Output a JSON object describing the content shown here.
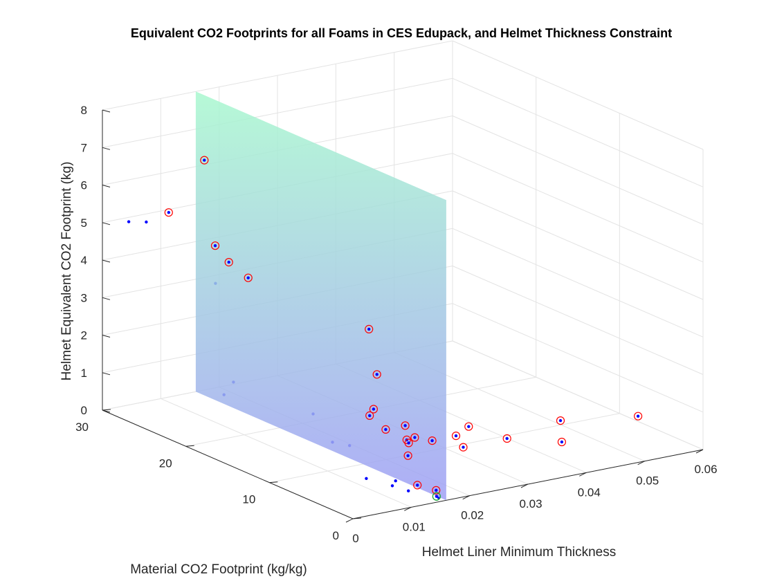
{
  "chart_data": {
    "type": "scatter",
    "title": "Equivalent CO2 Footprints for all Foams in CES Edupack, and Helmet Thickness Constraint",
    "xlabel": "Helmet Liner Minimum Thickness",
    "ylabel": "Material CO2 Footprint (kg/kg)",
    "zlabel": "Helmet Equivalent CO2 Footprint (kg)",
    "xlim": [
      0,
      0.06
    ],
    "ylim": [
      0,
      30
    ],
    "zlim": [
      0,
      8
    ],
    "x_ticks": [
      "0",
      "0.01",
      "0.02",
      "0.03",
      "0.04",
      "0.05",
      "0.06"
    ],
    "y_ticks": [
      "0",
      "10",
      "20",
      "30"
    ],
    "z_ticks": [
      "0",
      "1",
      "2",
      "3",
      "4",
      "5",
      "6",
      "7",
      "8"
    ],
    "grid": true,
    "constraint_plane": {
      "x": 0.016,
      "y": [
        0,
        30
      ],
      "z": [
        0,
        8
      ],
      "color_bottom": "#9f9ff5",
      "color_top": "#a9f8cf"
    },
    "series": [
      {
        "points": [
          {
            "x": 0.0018,
            "y": 28.1,
            "z": 5.15
          },
          {
            "x": 0.0048,
            "y": 28.1,
            "z": 5.05
          },
          {
            "x": 0.0085,
            "y": 22.4,
            "z": 3.85
          },
          {
            "x": 0.0093,
            "y": 20.8,
            "z": 1.35
          },
          {
            "x": 0.0081,
            "y": 21.1,
            "z": 1.02
          },
          {
            "x": 0.0135,
            "y": 14.2,
            "z": 1.01
          },
          {
            "x": 0.0141,
            "y": 12.3,
            "z": 0.42
          },
          {
            "x": 0.0156,
            "y": 11.3,
            "z": 0.38
          },
          {
            "x": 0.0116,
            "y": 6.5,
            "z": 0.09
          },
          {
            "x": 0.0139,
            "y": 4.6,
            "z": 0.14
          },
          {
            "x": 0.0132,
            "y": 4.5,
            "z": 0.04
          },
          {
            "x": 0.0138,
            "y": 3.0,
            "z": 0.03
          },
          {
            "x": 0.015,
            "y": 0.2,
            "z": 0.08
          }
        ]
      },
      {
        "points": [
          {
            "x": 0.0085,
            "y": 28.0,
            "z": 5.2
          },
          {
            "x": 0.0116,
            "y": 25.9,
            "z": 6.7
          },
          {
            "x": 0.0126,
            "y": 25.3,
            "z": 4.45
          },
          {
            "x": 0.0138,
            "y": 24.5,
            "z": 4.05
          },
          {
            "x": 0.0154,
            "y": 23.3,
            "z": 3.7
          },
          {
            "x": 0.0157,
            "y": 1.0,
            "z": 0.18
          },
          {
            "x": 0.021,
            "y": 12.2,
            "z": 1.1
          },
          {
            "x": 0.025,
            "y": 14.6,
            "z": 1.67
          },
          {
            "x": 0.0285,
            "y": 18.0,
            "z": 2.44
          },
          {
            "x": 0.0209,
            "y": 12.6,
            "z": 0.89
          },
          {
            "x": 0.0225,
            "y": 11.8,
            "z": 0.55
          },
          {
            "x": 0.0241,
            "y": 10.4,
            "z": 0.36
          },
          {
            "x": 0.0243,
            "y": 10.3,
            "z": 0.28
          },
          {
            "x": 0.0262,
            "y": 10.9,
            "z": 0.31
          },
          {
            "x": 0.028,
            "y": 13.3,
            "z": 0.34
          },
          {
            "x": 0.0226,
            "y": 9.2,
            "z": 0.1
          },
          {
            "x": 0.0279,
            "y": 10.0,
            "z": 0.26
          },
          {
            "x": 0.0314,
            "y": 9.6,
            "z": 0.32
          },
          {
            "x": 0.0315,
            "y": 8.8,
            "z": 0.09
          },
          {
            "x": 0.035,
            "y": 10.6,
            "z": 0.36
          },
          {
            "x": 0.038,
            "y": 8.1,
            "z": 0.19
          },
          {
            "x": 0.0431,
            "y": 5.1,
            "z": 0.23
          },
          {
            "x": 0.0463,
            "y": 7.5,
            "z": 0.47
          },
          {
            "x": 0.0553,
            "y": 4.5,
            "z": 0.6
          },
          {
            "x": 0.0162,
            "y": 3.6,
            "z": 0.05
          }
        ]
      },
      {
        "points": [
          {
            "x": 0.0152,
            "y": 0.6,
            "z": 0.07
          }
        ]
      }
    ]
  }
}
